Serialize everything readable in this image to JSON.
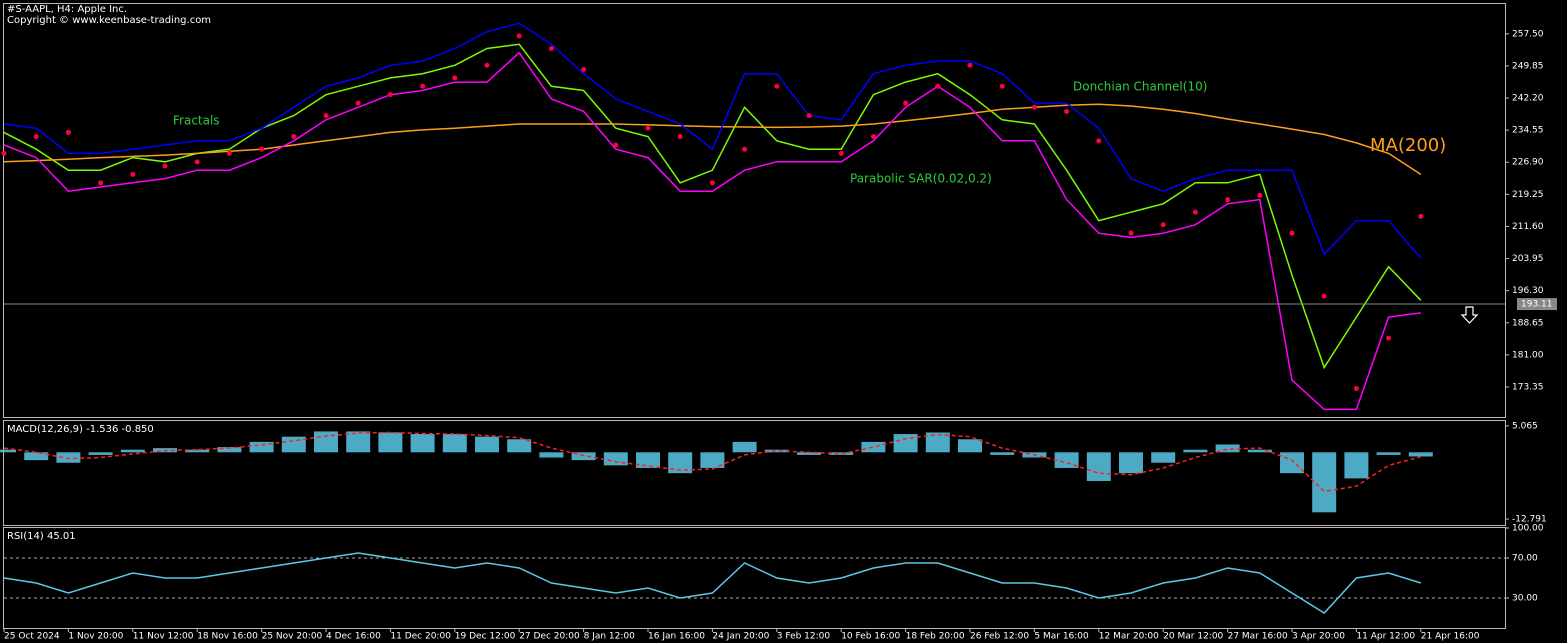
{
  "title": "#S-AAPL, H4:  Apple Inc.",
  "copyright": "Copyright © www.keenbase-trading.com",
  "annotations": [
    "Fractals",
    "Donchian Channel(10)",
    "Parabolic SAR(0.02,0.2)",
    "MA(200)"
  ],
  "chart_data": [
    {
      "type": "line",
      "ylim": [
        166.2,
        264.6
      ],
      "yticks": [
        {
          "value": 257.5,
          "label": "257.50"
        },
        {
          "value": 249.85,
          "label": "249.85"
        },
        {
          "value": 242.2,
          "label": "242.20"
        },
        {
          "value": 234.55,
          "label": "234.55"
        },
        {
          "value": 226.9,
          "label": "226.90"
        },
        {
          "value": 219.25,
          "label": "219.25"
        },
        {
          "value": 211.6,
          "label": "211.60"
        },
        {
          "value": 203.95,
          "label": "203.95"
        },
        {
          "value": 196.3,
          "label": "196.30"
        },
        {
          "value": 188.65,
          "label": "188.65"
        },
        {
          "value": 181,
          "label": "181.00"
        },
        {
          "value": 173.35,
          "label": "173.35"
        }
      ],
      "last_price": 193.11,
      "series": [
        {
          "style": "line",
          "color": "#7cfc00",
          "values": [
            234,
            230,
            225,
            225,
            228,
            227,
            229,
            230,
            235,
            238,
            243,
            245,
            247,
            248,
            250,
            254,
            255,
            245,
            244,
            235,
            233,
            222,
            225,
            240,
            232,
            230,
            230,
            243,
            246,
            248,
            243,
            237,
            236,
            225,
            213,
            215,
            217,
            222,
            222,
            224,
            200,
            178,
            190,
            202,
            194
          ]
        },
        {
          "style": "line",
          "color": "#ff9f1a",
          "values": [
            227,
            227.3,
            227.6,
            228,
            228.3,
            228.6,
            229,
            229.5,
            230,
            231,
            232,
            233,
            234,
            234.6,
            235,
            235.5,
            236,
            236,
            236,
            236,
            235.8,
            235.6,
            235.4,
            235.3,
            235.2,
            235.3,
            235.5,
            236,
            236.8,
            237.6,
            238.5,
            239.5,
            240,
            240.5,
            240.7,
            240.3,
            239.5,
            238.5,
            237.2,
            236,
            234.8,
            233.5,
            231.5,
            229,
            224
          ]
        },
        {
          "style": "line",
          "color": "#0000ff",
          "values": [
            236,
            235,
            229,
            229,
            230,
            231,
            232,
            232,
            235,
            240,
            245,
            247,
            250,
            251,
            254,
            258,
            260,
            255,
            248,
            242,
            239,
            236,
            230,
            248,
            248,
            238,
            237,
            248,
            250,
            251,
            251,
            248,
            241,
            241,
            235,
            223,
            220,
            223,
            225,
            225,
            225,
            205,
            213,
            213,
            204
          ]
        },
        {
          "style": "line",
          "color": "#ff00ff",
          "values": [
            231,
            228,
            220,
            221,
            222,
            223,
            225,
            225,
            228,
            232,
            237,
            240,
            243,
            244,
            246,
            246,
            253,
            242,
            239,
            230,
            228,
            220,
            220,
            225,
            227,
            227,
            227,
            232,
            240,
            245,
            240,
            232,
            232,
            218,
            210,
            209,
            210,
            212,
            217,
            218,
            175,
            168,
            168,
            190,
            191
          ]
        },
        {
          "style": "dots",
          "color": "#ff0040",
          "values": [
            229,
            233,
            234,
            222,
            224,
            226,
            227,
            229,
            230,
            233,
            238,
            241,
            243,
            245,
            247,
            250,
            257,
            254,
            249,
            231,
            235,
            233,
            222,
            230,
            245,
            238,
            229,
            233,
            241,
            245,
            250,
            245,
            240,
            239,
            232,
            210,
            212,
            215,
            218,
            219,
            210,
            195,
            173,
            185,
            214
          ]
        }
      ]
    },
    {
      "type": "bar",
      "title": "MACD(12,26,9) -1.536 -0.850",
      "ylim": [
        -13.93,
        6.0
      ],
      "yticks": [
        5.065,
        -12.791
      ],
      "series": [
        {
          "style": "bars",
          "color": "#5bc8e8",
          "values": [
            0.5,
            -1.5,
            -2.0,
            -0.5,
            0.5,
            0.8,
            0.5,
            1.0,
            2.0,
            3.0,
            4.0,
            4.0,
            3.8,
            3.5,
            3.5,
            3.0,
            2.5,
            -1.0,
            -1.5,
            -2.5,
            -3.0,
            -4.0,
            -3.0,
            2.0,
            0.5,
            -0.5,
            -0.5,
            2.0,
            3.5,
            3.8,
            2.5,
            -0.5,
            -1.0,
            -3.0,
            -5.5,
            -4.0,
            -2.0,
            0.5,
            1.5,
            0.5,
            -4.0,
            -11.5,
            -5.0,
            -0.5,
            -0.8
          ]
        },
        {
          "style": "dashed",
          "color": "#ff2020",
          "values": [
            0.8,
            0.0,
            -1.2,
            -1.0,
            -0.3,
            0.3,
            0.5,
            0.8,
            1.4,
            2.2,
            3.1,
            3.7,
            3.8,
            3.6,
            3.5,
            3.2,
            2.8,
            0.8,
            -0.6,
            -1.8,
            -2.6,
            -3.4,
            -3.2,
            -0.5,
            0.3,
            0.0,
            -0.3,
            1.0,
            2.6,
            3.4,
            3.0,
            0.8,
            -0.5,
            -2.0,
            -4.0,
            -4.3,
            -3.0,
            -1.0,
            0.6,
            0.8,
            -1.5,
            -7.5,
            -6.5,
            -2.5,
            -0.85
          ]
        }
      ]
    },
    {
      "type": "line",
      "title": "RSI(14) 45.01",
      "ylim": [
        0,
        100
      ],
      "yticks": [
        {
          "value": 100,
          "label": "100.00"
        },
        {
          "value": 70,
          "label": "70.00"
        },
        {
          "value": 30,
          "label": "30.00"
        }
      ],
      "grid": "dashed",
      "categories": [
        "25 Oct 2024",
        null,
        "1 Nov 20:00",
        null,
        "11 Nov 12:00",
        null,
        "18 Nov 16:00",
        null,
        "25 Nov 20:00",
        null,
        "4 Dec 16:00",
        null,
        "11 Dec 20:00",
        null,
        "19 Dec 12:00",
        null,
        "27 Dec 20:00",
        null,
        "8 Jan 12:00",
        null,
        "16 Jan 16:00",
        null,
        "24 Jan 20:00",
        null,
        "3 Feb 12:00",
        null,
        "10 Feb 16:00",
        null,
        "18 Feb 20:00",
        null,
        "26 Feb 12:00",
        null,
        "5 Mar 16:00",
        null,
        "12 Mar 20:00",
        null,
        "20 Mar 12:00",
        null,
        "27 Mar 16:00",
        null,
        "3 Apr 20:00",
        null,
        "11 Apr 12:00",
        null,
        "21 Apr 16:00"
      ],
      "series": [
        {
          "style": "line",
          "color": "#5bc8e8",
          "values": [
            50,
            45,
            35,
            45,
            55,
            50,
            50,
            55,
            60,
            65,
            70,
            75,
            70,
            65,
            60,
            65,
            60,
            45,
            40,
            35,
            40,
            30,
            35,
            65,
            50,
            45,
            50,
            60,
            65,
            65,
            55,
            45,
            45,
            40,
            30,
            35,
            45,
            50,
            60,
            55,
            35,
            15,
            50,
            55,
            45
          ]
        }
      ]
    }
  ]
}
